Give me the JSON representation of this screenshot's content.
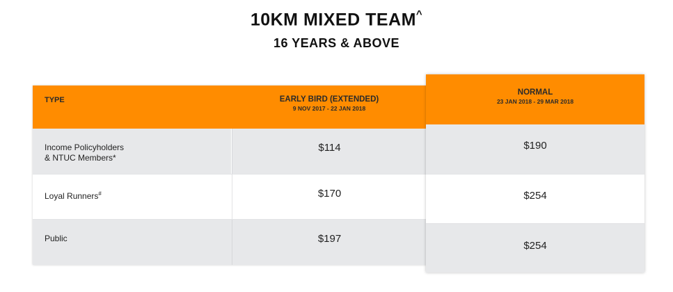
{
  "heading": {
    "title": "10KM MIXED TEAM",
    "title_mark": "^",
    "subtitle": "16 YEARS & ABOVE"
  },
  "table": {
    "header": {
      "type": "TYPE",
      "early_bird": "EARLY BIRD (EXTENDED)",
      "early_bird_dates": "9 NOV 2017 - 22 JAN 2018",
      "normal": "NORMAL",
      "normal_dates": "23 JAN 2018 - 29 MAR 2018"
    },
    "rows": [
      {
        "type_line1": "Income Policyholders",
        "type_line2": "& NTUC Members*",
        "early_bird": "$114",
        "normal": "$190"
      },
      {
        "type_line1": "Loyal Runners",
        "type_mark": "#",
        "early_bird": "$170",
        "normal": "$254"
      },
      {
        "type_line1": "Public",
        "early_bird": "$197",
        "normal": "$254"
      }
    ]
  },
  "colors": {
    "accent": "#ff8c00",
    "row_grey": "#e7e8ea"
  }
}
